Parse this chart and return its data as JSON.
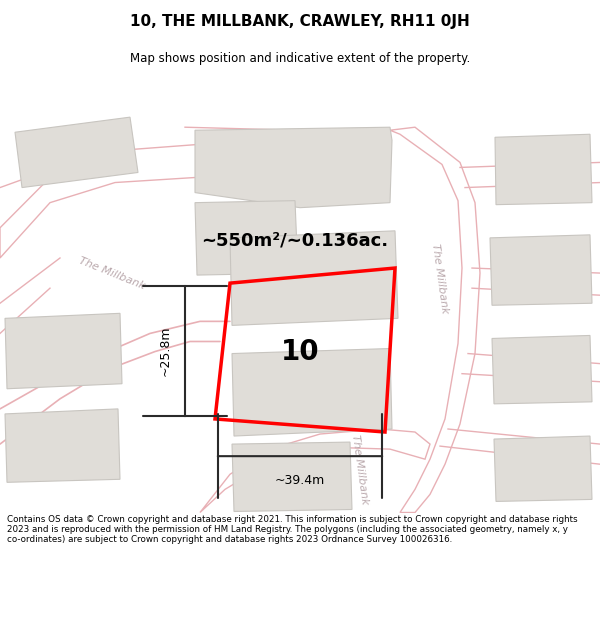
{
  "title": "10, THE MILLBANK, CRAWLEY, RH11 0JH",
  "subtitle": "Map shows position and indicative extent of the property.",
  "footer": "Contains OS data © Crown copyright and database right 2021. This information is subject to Crown copyright and database rights 2023 and is reproduced with the permission of HM Land Registry. The polygons (including the associated geometry, namely x, y co-ordinates) are subject to Crown copyright and database rights 2023 Ordnance Survey 100026316.",
  "map_bg": "#f7f5f2",
  "road_fill": "#ffffff",
  "road_edge": "#e8b0b5",
  "building_fill": "#e0ddd8",
  "building_edge": "#c8c5c0",
  "road_label_color": "#bbaaae",
  "area_text": "~550m²/~0.136ac.",
  "property_label": "10",
  "dim_width": "~39.4m",
  "dim_height": "~25.8m",
  "road_label": "The Millbank"
}
